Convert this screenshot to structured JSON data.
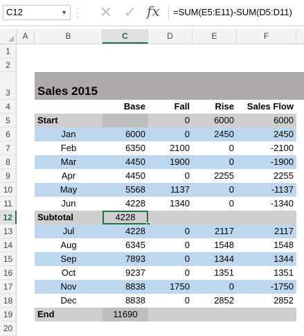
{
  "formula_bar": {
    "name_box": "C12",
    "formula": "=SUM(E5:E11)-SUM(D5:D11)",
    "fx_label": "fx"
  },
  "columns": [
    "A",
    "B",
    "C",
    "D",
    "E",
    "F"
  ],
  "rows": [
    "1",
    "2",
    "3",
    "4",
    "5",
    "6",
    "7",
    "8",
    "9",
    "10",
    "11",
    "12",
    "13",
    "14",
    "15",
    "16",
    "17",
    "18",
    "19",
    "20"
  ],
  "sheet": {
    "title": "Sales 2015",
    "headers": {
      "base": "Base",
      "fall": "Fall",
      "rise": "Rise",
      "flow": "Sales Flow"
    },
    "start": {
      "label": "Start",
      "fall": "0",
      "rise": "6000",
      "flow": "6000"
    },
    "months_h1": [
      {
        "label": "Jan",
        "base": "6000",
        "fall": "0",
        "rise": "2450",
        "flow": "2450"
      },
      {
        "label": "Feb",
        "base": "6350",
        "fall": "2100",
        "rise": "0",
        "flow": "-2100"
      },
      {
        "label": "Mar",
        "base": "4450",
        "fall": "1900",
        "rise": "0",
        "flow": "-1900"
      },
      {
        "label": "Apr",
        "base": "4450",
        "fall": "0",
        "rise": "2255",
        "flow": "2255"
      },
      {
        "label": "May",
        "base": "5568",
        "fall": "1137",
        "rise": "0",
        "flow": "-1137"
      },
      {
        "label": "Jun",
        "base": "4228",
        "fall": "1340",
        "rise": "0",
        "flow": "-1340"
      }
    ],
    "subtotal": {
      "label": "Subtotal",
      "base": "4228"
    },
    "months_h2": [
      {
        "label": "Jul",
        "base": "4228",
        "fall": "0",
        "rise": "2117",
        "flow": "2117"
      },
      {
        "label": "Aug",
        "base": "6345",
        "fall": "0",
        "rise": "1548",
        "flow": "1548"
      },
      {
        "label": "Sep",
        "base": "7893",
        "fall": "0",
        "rise": "1344",
        "flow": "1344"
      },
      {
        "label": "Oct",
        "base": "9237",
        "fall": "0",
        "rise": "1351",
        "flow": "1351"
      },
      {
        "label": "Nov",
        "base": "8838",
        "fall": "1750",
        "rise": "0",
        "flow": "-1750"
      },
      {
        "label": "Dec",
        "base": "8838",
        "fall": "0",
        "rise": "2852",
        "flow": "2852"
      }
    ],
    "end": {
      "label": "End",
      "base": "11690"
    }
  },
  "colors": {
    "accent": "#217346",
    "band_blue": "#bdd7ee",
    "band_grey": "#d0cece",
    "title_band": "#aeaaaa"
  }
}
